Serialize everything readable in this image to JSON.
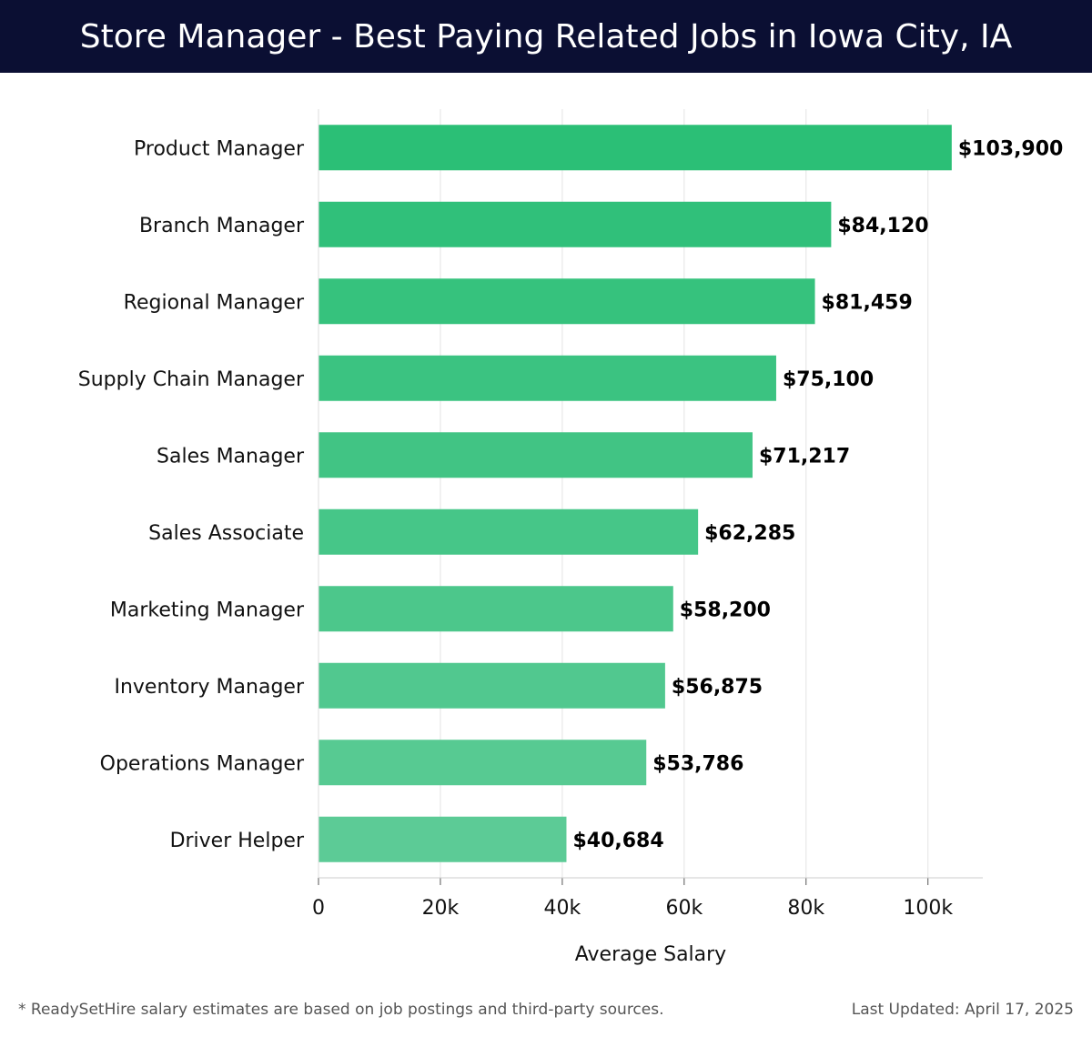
{
  "header": {
    "title": "Store Manager - Best Paying Related Jobs in Iowa City, IA"
  },
  "chart_data": {
    "type": "bar",
    "orientation": "horizontal",
    "categories": [
      "Product Manager",
      "Branch Manager",
      "Regional Manager",
      "Supply Chain Manager",
      "Sales Manager",
      "Sales Associate",
      "Marketing Manager",
      "Inventory Manager",
      "Operations Manager",
      "Driver Helper"
    ],
    "values": [
      103900,
      84120,
      81459,
      75100,
      71217,
      62285,
      58200,
      56875,
      53786,
      40684
    ],
    "value_labels": [
      "$103,900",
      "$84,120",
      "$81,459",
      "$75,100",
      "$71,217",
      "$62,285",
      "$58,200",
      "$56,875",
      "$53,786",
      "$40,684"
    ],
    "xlabel": "Average Salary",
    "xlim": [
      0,
      109000
    ],
    "xticks": [
      0,
      20000,
      40000,
      60000,
      80000,
      100000
    ],
    "xtick_labels": [
      "0",
      "20k",
      "40k",
      "60k",
      "80k",
      "100k"
    ],
    "grid": true,
    "bar_color_top": "#2bbf76",
    "bar_color_bottom": "#5ccb96"
  },
  "footer": {
    "note": "* ReadySetHire salary estimates are based on job postings and third-party sources.",
    "updated": "Last Updated: April 17, 2025"
  }
}
